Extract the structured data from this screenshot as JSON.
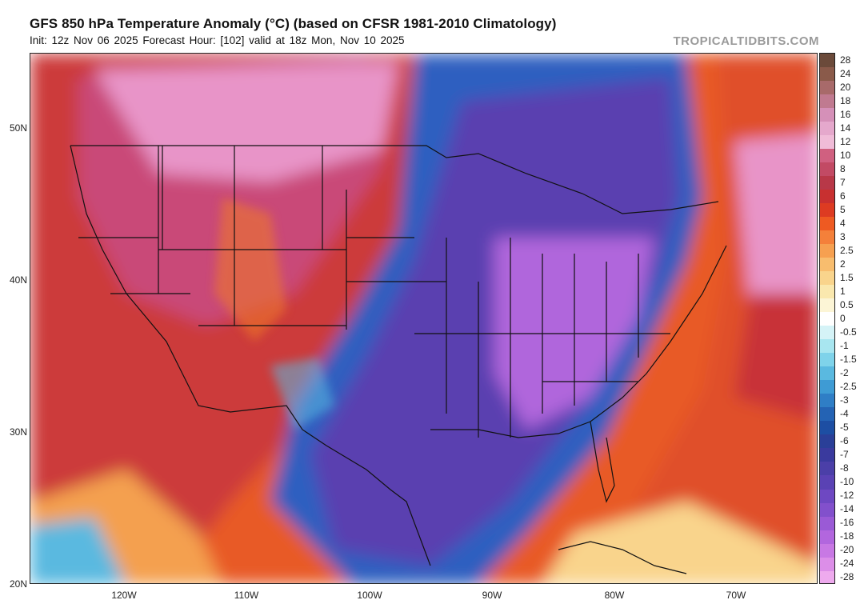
{
  "header": {
    "title": "GFS 850 hPa Temperature Anomaly (°C) (based on CFSR 1981-2010 Climatology)",
    "subtitle": "Init: 12z Nov 06 2025   Forecast Hour: [102]   valid at 18z Mon, Nov 10 2025",
    "brand": "TROPICALTIDBITS.COM"
  },
  "map": {
    "lat_labels": [
      "50N",
      "40N",
      "30N",
      "20N"
    ],
    "lon_labels": [
      "120W",
      "110W",
      "100W",
      "90W",
      "80W",
      "70W"
    ]
  },
  "colorbar": {
    "levels": [
      "28",
      "24",
      "20",
      "18",
      "16",
      "14",
      "12",
      "10",
      "8",
      "7",
      "6",
      "5",
      "4",
      "3",
      "2.5",
      "2",
      "1.5",
      "1",
      "0.5",
      "0",
      "-0.5",
      "-1",
      "-1.5",
      "-2",
      "-2.5",
      "-3",
      "-4",
      "-5",
      "-6",
      "-7",
      "-8",
      "-10",
      "-12",
      "-14",
      "-16",
      "-18",
      "-20",
      "-24",
      "-28"
    ],
    "colors": [
      "#6b4a3a",
      "#8a5a4a",
      "#a86a6a",
      "#c07a90",
      "#d590b8",
      "#e5a8cc",
      "#f0bcd8",
      "#d06080",
      "#c24a64",
      "#b83848",
      "#c83030",
      "#dd3b22",
      "#ee5a22",
      "#f4803a",
      "#f6a050",
      "#f8bd6e",
      "#f9d48c",
      "#fae8ae",
      "#fcf5d6",
      "#ffffff",
      "#d5f3f7",
      "#a8e6f0",
      "#7fd3ea",
      "#5ab9e0",
      "#3e9bd4",
      "#2f7ec6",
      "#2463b4",
      "#1d4ea3",
      "#2a3f98",
      "#3a3a9e",
      "#4b3fa8",
      "#5a42b4",
      "#6e48c2",
      "#8250cc",
      "#9a5ad6",
      "#b266de",
      "#c878e4",
      "#dc8ee8",
      "#ee aaee"
    ]
  }
}
